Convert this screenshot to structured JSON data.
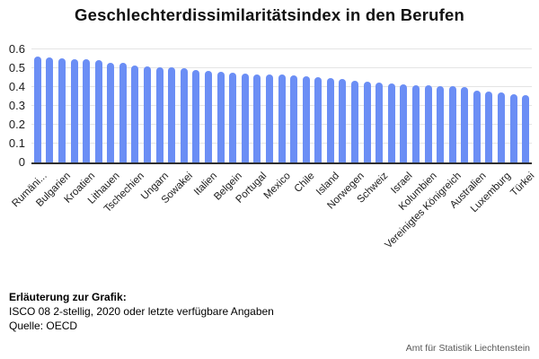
{
  "chart_data": {
    "type": "bar",
    "title": "Geschlechterdissimilaritätsindex in den Berufen",
    "xlabel": "",
    "ylabel": "",
    "ylim": [
      0,
      0.6
    ],
    "ytick_labels": [
      "0",
      "0.1",
      "0.2",
      "0.3",
      "0.4",
      "0.5",
      "0.6"
    ],
    "grid": true,
    "legend": false,
    "bar_color": "#6b8ef5",
    "label_every": 2,
    "categories": [
      "Rumäni...",
      "",
      "Bulgarien",
      "",
      "Kroatien",
      "",
      "Lithauen",
      "",
      "Tschechien",
      "",
      "Ungarn",
      "",
      "Sowakei",
      "",
      "Italien",
      "",
      "Belgein",
      "",
      "Portugal",
      "",
      "Mexico",
      "",
      "Chile",
      "",
      "Island",
      "",
      "Norwegen",
      "",
      "Schweiz",
      "",
      "Israel",
      "",
      "Kolumbien",
      "",
      "Vereinigtes Königreich",
      "",
      "Australien",
      "",
      "Luxemburg",
      "",
      "Türkei"
    ],
    "values": [
      0.56,
      0.556,
      0.552,
      0.55,
      0.548,
      0.541,
      0.531,
      0.527,
      0.514,
      0.511,
      0.507,
      0.505,
      0.501,
      0.491,
      0.486,
      0.481,
      0.476,
      0.472,
      0.469,
      0.467,
      0.465,
      0.463,
      0.458,
      0.452,
      0.447,
      0.441,
      0.432,
      0.428,
      0.423,
      0.418,
      0.414,
      0.411,
      0.41,
      0.407,
      0.405,
      0.4,
      0.382,
      0.378,
      0.371,
      0.363,
      0.356
    ]
  },
  "footer": {
    "heading": "Erläuterung zur Grafik:",
    "line1": "ISCO 08 2-stellig, 2020 oder letzte verfügbare Angaben",
    "line2": "Quelle: OECD"
  },
  "attribution": "Amt für Statistik Liechtenstein"
}
